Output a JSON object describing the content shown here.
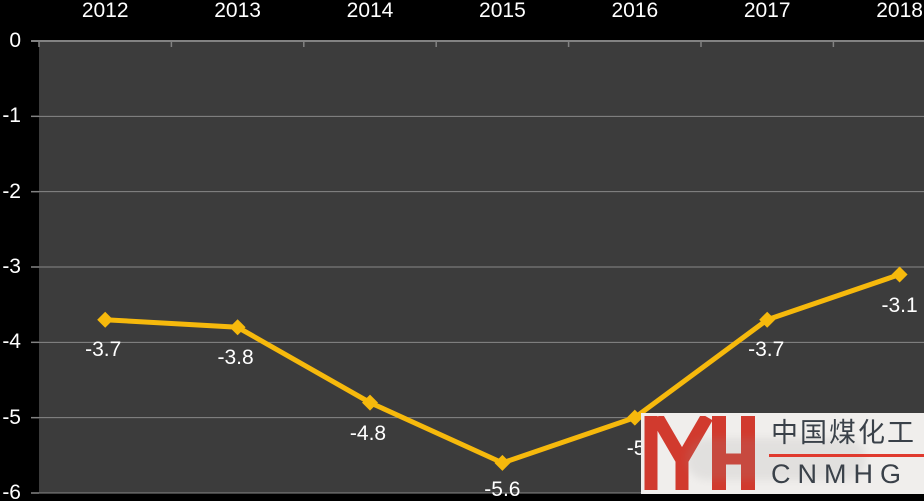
{
  "chart_data": {
    "type": "line",
    "title": "",
    "categories": [
      "2012",
      "2013",
      "2014",
      "2015",
      "2016",
      "2017",
      "2018"
    ],
    "series": [
      {
        "name": "",
        "values": [
          -3.7,
          -3.8,
          -4.8,
          -5.6,
          -5.0,
          -3.7,
          -3.1
        ]
      }
    ],
    "data_labels": [
      "-3.7",
      "-3.8",
      "-4.8",
      "-5.6",
      "-5.0",
      "-3.7",
      "-3.1"
    ],
    "y_ticks": [
      0,
      -1,
      -2,
      -3,
      -4,
      -5,
      -6
    ],
    "y_tick_labels": [
      "0",
      "-1",
      "-2",
      "-3",
      "-4",
      "-5",
      "-6"
    ],
    "ylim": [
      -6,
      0
    ],
    "xlabel": "",
    "ylabel": "",
    "x_axis_position": "top",
    "grid": true,
    "legend_position": "none",
    "marker": "diamond",
    "colors": {
      "line": "#F6B90C",
      "marker": "#F6B90C",
      "plot_bg": "#3C3C3C",
      "page_bg": "#000000",
      "gridline": "#878787",
      "axis": "#828282",
      "label_text": "#FFFFFF"
    }
  },
  "watermark": {
    "monogram": "YH",
    "line1": "中国煤化工",
    "line2": "CNMHG",
    "colors": {
      "box_bg": "#F0EEEC",
      "monogram_red": "#D13A2E",
      "text": "#3A4149",
      "divider": "#E03A2E"
    }
  }
}
